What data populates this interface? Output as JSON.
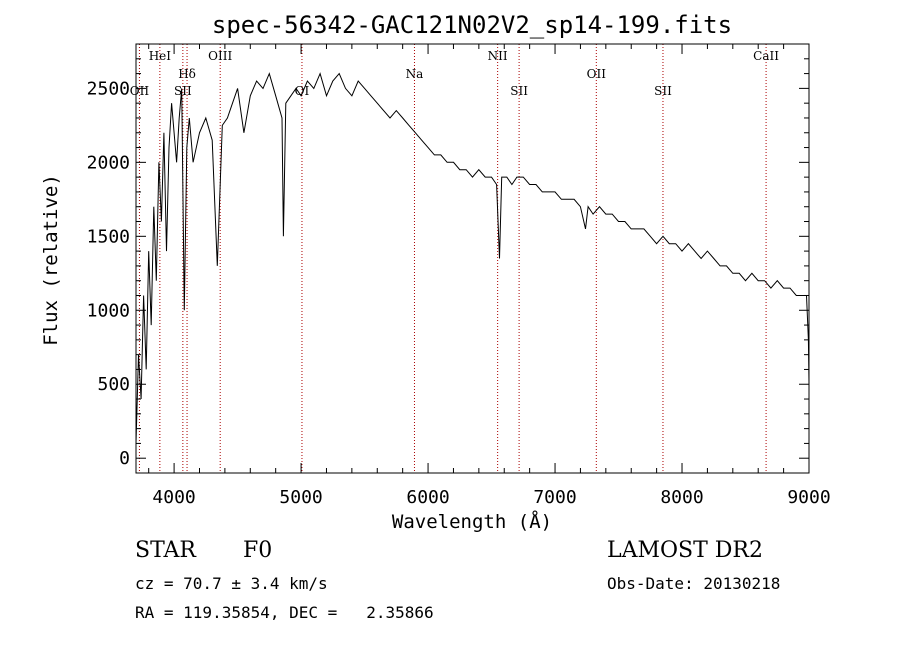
{
  "chart_data": {
    "type": "line",
    "title": "spec-56342-GAC121N02V2_sp14-199.fits",
    "xlabel": "Wavelength (Å)",
    "ylabel": "Flux (relative)",
    "xlim": [
      3700,
      9000
    ],
    "ylim": [
      -100,
      2800
    ],
    "xticks": [
      4000,
      5000,
      6000,
      7000,
      8000,
      9000
    ],
    "yticks": [
      0,
      500,
      1000,
      1500,
      2000,
      2500
    ],
    "grid": false,
    "line_color": "#000000",
    "marker_color": "#aa0000",
    "series": [
      {
        "x": [
          3700,
          3720,
          3740,
          3760,
          3780,
          3800,
          3820,
          3840,
          3860,
          3880,
          3900,
          3920,
          3940,
          3960,
          3980,
          4000,
          4020,
          4040,
          4060,
          4080,
          4100,
          4120,
          4150,
          4200,
          4250,
          4300,
          4340,
          4380,
          4420,
          4460,
          4500,
          4550,
          4600,
          4650,
          4700,
          4750,
          4800,
          4850,
          4861,
          4880,
          4920,
          4960,
          5000,
          5050,
          5100,
          5150,
          5200,
          5250,
          5300,
          5350,
          5400,
          5450,
          5500,
          5550,
          5600,
          5650,
          5700,
          5750,
          5800,
          5850,
          5900,
          5950,
          6000,
          6050,
          6100,
          6150,
          6200,
          6250,
          6300,
          6350,
          6400,
          6450,
          6500,
          6540,
          6563,
          6580,
          6620,
          6660,
          6700,
          6750,
          6800,
          6850,
          6900,
          6950,
          7000,
          7050,
          7100,
          7150,
          7200,
          7240,
          7260,
          7300,
          7350,
          7400,
          7450,
          7500,
          7550,
          7600,
          7650,
          7700,
          7750,
          7800,
          7850,
          7900,
          7950,
          8000,
          8050,
          8100,
          8150,
          8200,
          8250,
          8300,
          8350,
          8400,
          8450,
          8500,
          8550,
          8600,
          8650,
          8700,
          8750,
          8800,
          8850,
          8900,
          8950,
          8980,
          8995,
          9000
        ],
        "y": [
          100,
          700,
          400,
          1100,
          600,
          1400,
          900,
          1700,
          1200,
          2000,
          1600,
          2200,
          1400,
          2100,
          2400,
          2200,
          2000,
          2300,
          2500,
          1000,
          2100,
          2300,
          2000,
          2200,
          2300,
          2150,
          1300,
          2250,
          2300,
          2400,
          2500,
          2200,
          2450,
          2550,
          2500,
          2600,
          2450,
          2300,
          1500,
          2400,
          2450,
          2500,
          2450,
          2550,
          2500,
          2600,
          2450,
          2550,
          2600,
          2500,
          2450,
          2550,
          2500,
          2450,
          2400,
          2350,
          2300,
          2350,
          2300,
          2250,
          2200,
          2150,
          2100,
          2050,
          2050,
          2000,
          2000,
          1950,
          1950,
          1900,
          1950,
          1900,
          1900,
          1850,
          1350,
          1900,
          1900,
          1850,
          1900,
          1900,
          1850,
          1850,
          1800,
          1800,
          1800,
          1750,
          1750,
          1750,
          1700,
          1550,
          1700,
          1650,
          1700,
          1650,
          1650,
          1600,
          1600,
          1550,
          1550,
          1550,
          1500,
          1450,
          1500,
          1450,
          1450,
          1400,
          1450,
          1400,
          1350,
          1400,
          1350,
          1300,
          1300,
          1250,
          1250,
          1200,
          1250,
          1200,
          1200,
          1150,
          1200,
          1150,
          1150,
          1100,
          1100,
          1100,
          800,
          500
        ]
      }
    ],
    "line_markers": [
      {
        "label": "HeI",
        "x": 3888,
        "row": "top"
      },
      {
        "label": "OIII",
        "x": 4363,
        "row": "top"
      },
      {
        "label": "NII",
        "x": 6548,
        "row": "top"
      },
      {
        "label": "CaII",
        "x": 8662,
        "row": "top"
      },
      {
        "label": "Hδ",
        "x": 4102,
        "row": "mid"
      },
      {
        "label": "Na",
        "x": 5893,
        "row": "mid"
      },
      {
        "label": "OII",
        "x": 7325,
        "row": "mid"
      },
      {
        "label": "OII",
        "x": 3727,
        "row": "low"
      },
      {
        "label": "SII",
        "x": 4069,
        "row": "low"
      },
      {
        "label": "OI",
        "x": 5007,
        "row": "low"
      },
      {
        "label": "SII",
        "x": 6717,
        "row": "low"
      },
      {
        "label": "SII",
        "x": 7850,
        "row": "low"
      }
    ]
  },
  "info": {
    "class_label": "STAR",
    "subclass": "F0",
    "cz": "cz = 70.7 ± 3.4 km/s",
    "coords": "RA = 119.35854, DEC =   2.35866",
    "survey": "LAMOST DR2",
    "obs_date": "Obs-Date: 20130218"
  }
}
